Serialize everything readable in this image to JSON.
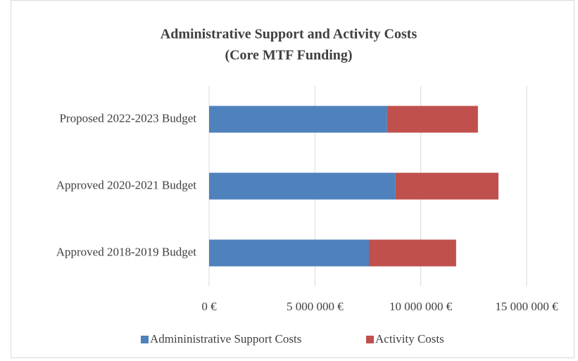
{
  "chart_data": {
    "type": "stacked_barh",
    "title": "Administrative Support and Activity Costs",
    "subtitle": "(Core MTF Funding)",
    "categories": [
      "Approved 2018-2019 Budget",
      "Approved 2020-2021 Budget",
      "Proposed 2022-2023 Budget"
    ],
    "series": [
      {
        "name": "Admininistrative Support Costs",
        "color": "#4f81bd",
        "values": [
          7550000,
          8810000,
          8410000
        ]
      },
      {
        "name": "Activity Costs",
        "color": "#c0504d",
        "values": [
          4120000,
          4860000,
          4290000
        ]
      }
    ],
    "xlim": [
      0,
      15000000
    ],
    "xticks": [
      {
        "value": 0,
        "label": "0 €"
      },
      {
        "value": 5000000,
        "label": "5 000 000 €"
      },
      {
        "value": 10000000,
        "label": "10 000 000 €"
      },
      {
        "value": 15000000,
        "label": "15 000 000 €"
      }
    ],
    "grid": true,
    "legend": "bottom"
  }
}
